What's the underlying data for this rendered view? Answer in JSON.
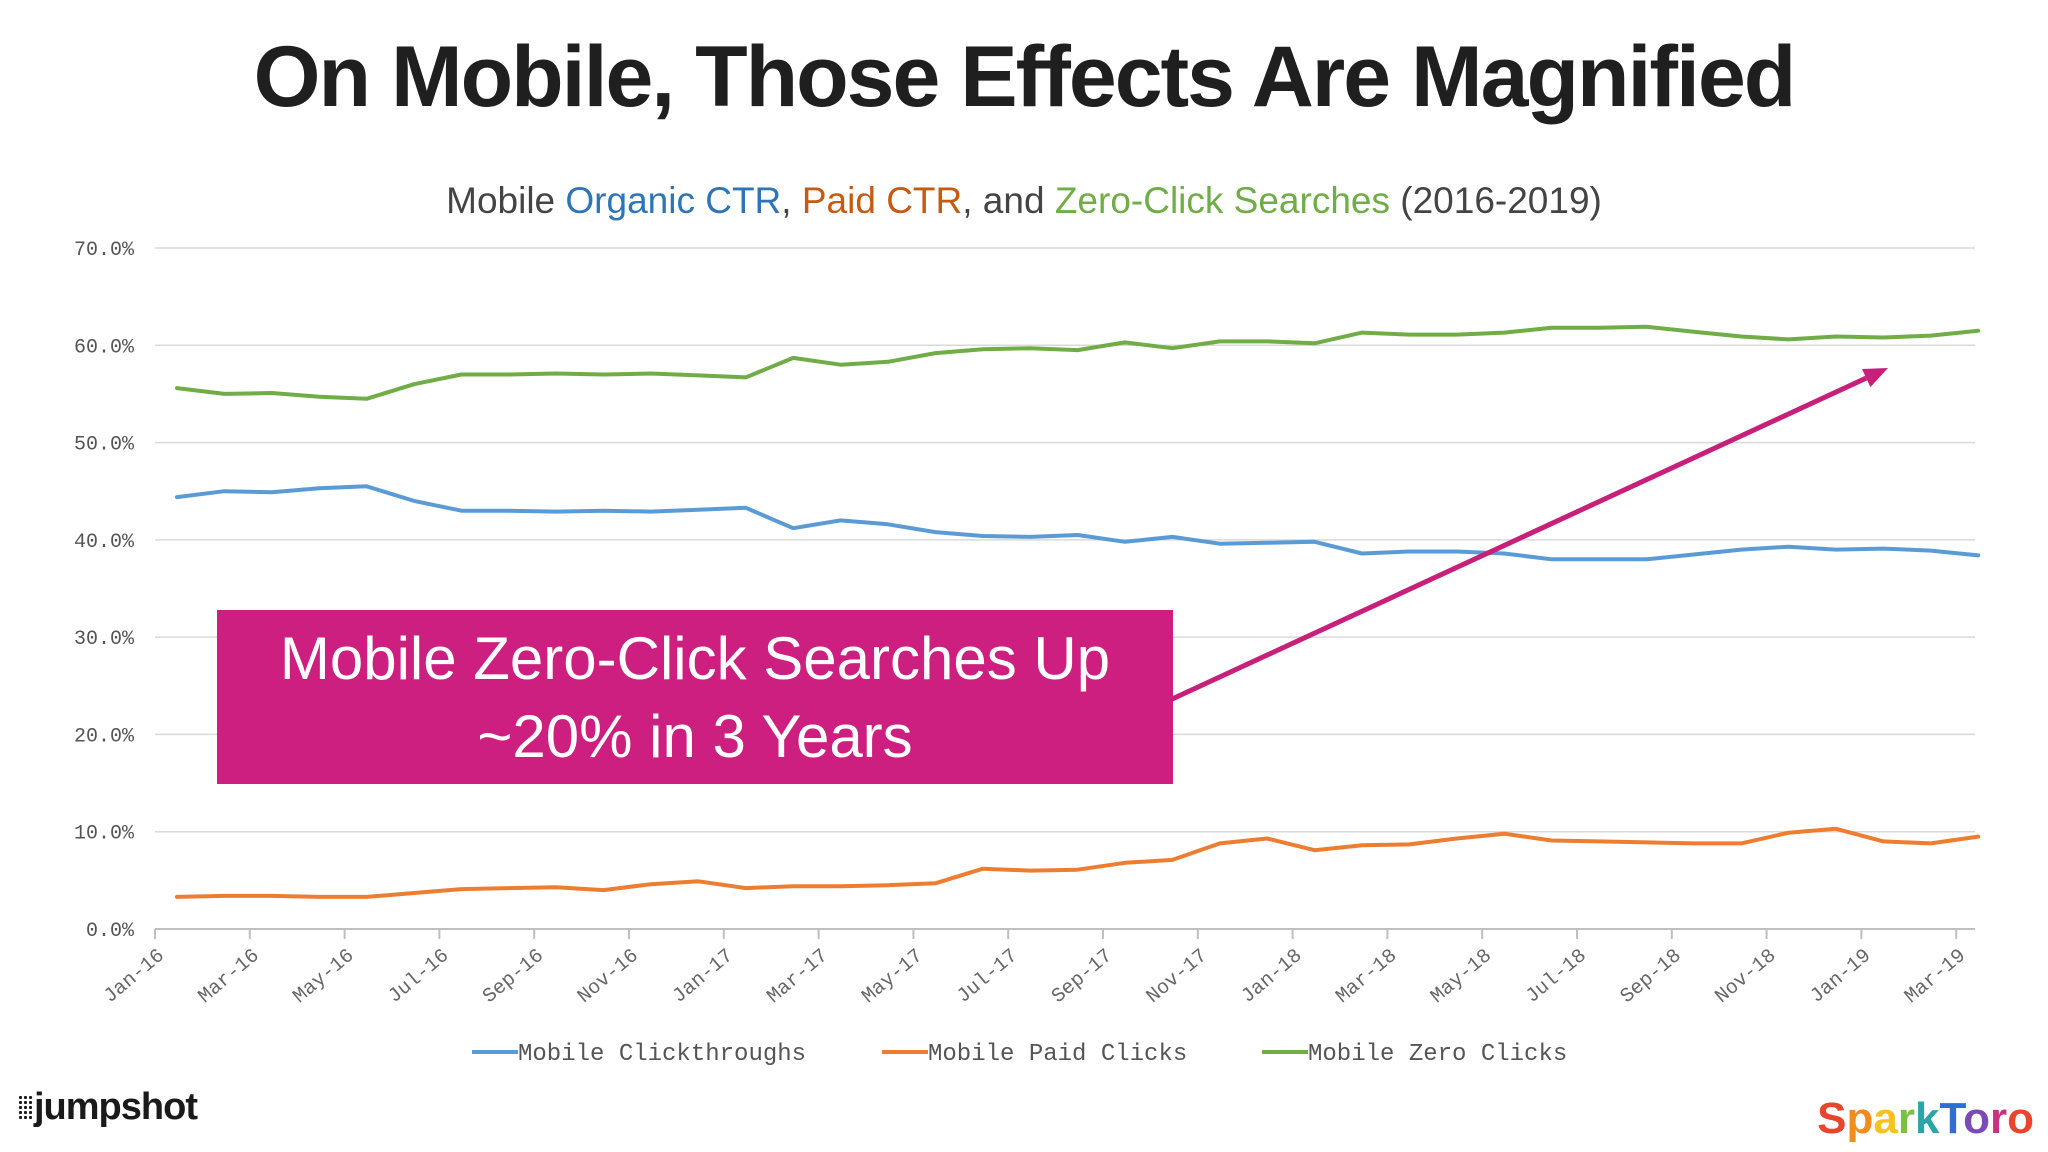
{
  "title": "On Mobile, Those Effects Are Magnified",
  "subtitle": {
    "part1": "Mobile ",
    "part2": "Organic CTR",
    "part3": ", ",
    "part4": "Paid CTR",
    "part5": ", and ",
    "part6": "Zero-Click Searches",
    "part7": " (2016-2019)"
  },
  "callout": {
    "line1": "Mobile Zero-Click Searches Up",
    "line2": "~20% in 3 Years"
  },
  "logos": {
    "left": "jumpshot",
    "right_letters": [
      "S",
      "p",
      "a",
      "r",
      "k",
      "T",
      "o",
      "r",
      "o"
    ],
    "right_colors": [
      "#e8452c",
      "#f28c1e",
      "#f6c21b",
      "#7bc043",
      "#2aa6a6",
      "#2f6fd1",
      "#7b4ab8",
      "#c8327f",
      "#e8452c"
    ]
  },
  "colors": {
    "organic": "#5b9bd5",
    "paid": "#ed7d31",
    "zero": "#70ad47",
    "arrow": "#c7207a",
    "grid": "#d9d9d9"
  },
  "chart_data": {
    "type": "line",
    "x_tick_labels": [
      "Jan-16",
      "Mar-16",
      "May-16",
      "Jul-16",
      "Sep-16",
      "Nov-16",
      "Jan-17",
      "Mar-17",
      "May-17",
      "Jul-17",
      "Sep-17",
      "Nov-17",
      "Jan-18",
      "Mar-18",
      "May-18",
      "Jul-18",
      "Sep-18",
      "Nov-18",
      "Jan-19",
      "Mar-19"
    ],
    "y_tick_labels": [
      "0.0%",
      "10.0%",
      "20.0%",
      "30.0%",
      "40.0%",
      "50.0%",
      "60.0%",
      "70.0%"
    ],
    "ylim": [
      0,
      70
    ],
    "grid": true,
    "legend_position": "bottom",
    "x": [
      "Jan-16",
      "Feb-16",
      "Mar-16",
      "Apr-16",
      "May-16",
      "Jun-16",
      "Jul-16",
      "Aug-16",
      "Sep-16",
      "Oct-16",
      "Nov-16",
      "Dec-16",
      "Jan-17",
      "Feb-17",
      "Mar-17",
      "Apr-17",
      "May-17",
      "Jun-17",
      "Jul-17",
      "Aug-17",
      "Sep-17",
      "Oct-17",
      "Nov-17",
      "Dec-17",
      "Jan-18",
      "Feb-18",
      "Mar-18",
      "Apr-18",
      "May-18",
      "Jun-18",
      "Jul-18",
      "Aug-18",
      "Sep-18",
      "Oct-18",
      "Nov-18",
      "Dec-18",
      "Jan-19",
      "Feb-19",
      "Mar-19"
    ],
    "series": [
      {
        "name": "Mobile Clickthroughs",
        "color": "#5b9bd5",
        "values": [
          44.4,
          45.0,
          44.9,
          45.3,
          45.5,
          44.0,
          43.0,
          43.0,
          42.9,
          43.0,
          42.9,
          43.1,
          43.3,
          41.2,
          42.0,
          41.6,
          40.8,
          40.4,
          40.3,
          40.5,
          39.8,
          40.3,
          39.6,
          39.7,
          39.8,
          38.6,
          38.8,
          38.8,
          38.6,
          38.0,
          38.0,
          38.0,
          38.5,
          39.0,
          39.3,
          39.0,
          39.1,
          38.9,
          38.4
        ]
      },
      {
        "name": "Mobile Paid Clicks",
        "color": "#ed7d31",
        "values": [
          3.3,
          3.4,
          3.4,
          3.3,
          3.3,
          3.7,
          4.1,
          4.2,
          4.3,
          4.0,
          4.6,
          4.9,
          4.2,
          4.4,
          4.4,
          4.5,
          4.7,
          6.2,
          6.0,
          6.1,
          6.8,
          7.1,
          8.8,
          9.3,
          8.1,
          8.6,
          8.7,
          9.3,
          9.8,
          9.1,
          9.0,
          8.9,
          8.8,
          8.8,
          9.9,
          10.3,
          9.0,
          8.8,
          9.5
        ]
      },
      {
        "name": "Mobile Zero Clicks",
        "color": "#70ad47",
        "values": [
          55.6,
          55.0,
          55.1,
          54.7,
          54.5,
          56.0,
          57.0,
          57.0,
          57.1,
          57.0,
          57.1,
          56.9,
          56.7,
          58.7,
          58.0,
          58.3,
          59.2,
          59.6,
          59.7,
          59.5,
          60.3,
          59.7,
          60.4,
          60.4,
          60.2,
          61.3,
          61.1,
          61.1,
          61.3,
          61.8,
          61.8,
          61.9,
          61.4,
          60.9,
          60.6,
          60.9,
          60.8,
          61.0,
          61.5
        ]
      }
    ]
  }
}
